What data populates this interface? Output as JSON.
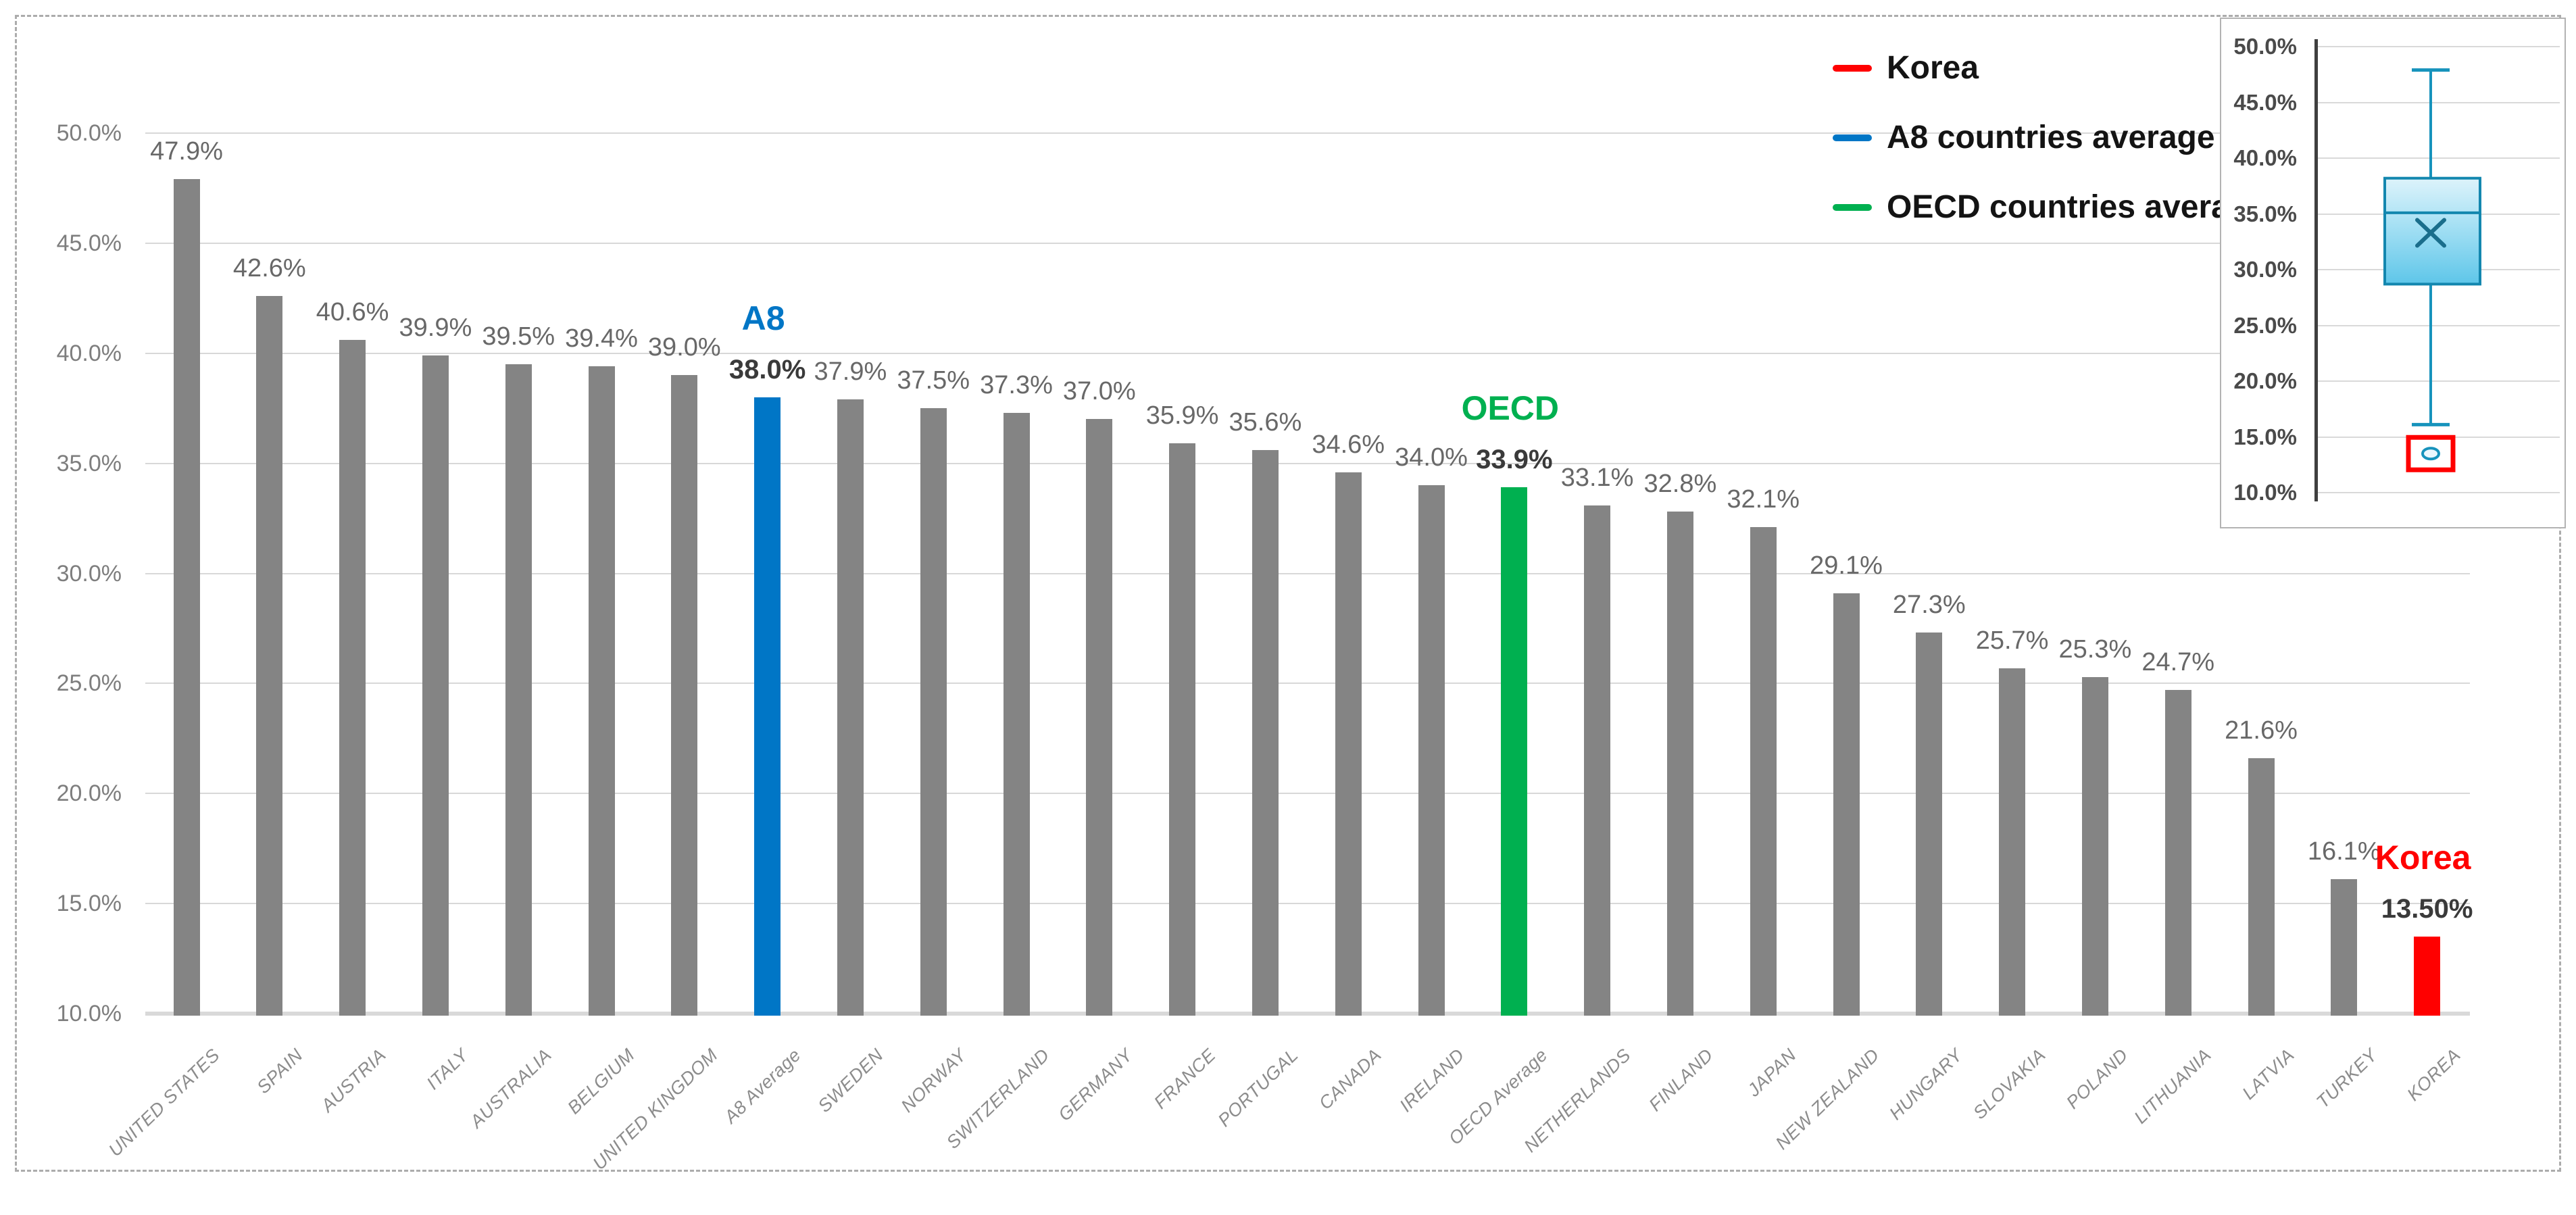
{
  "legend": {
    "items": [
      {
        "label": "Korea",
        "color": "#FF0000"
      },
      {
        "label": "A8 countries average",
        "color": "#0076C6"
      },
      {
        "label": "OECD countries average",
        "color": "#00B050"
      }
    ]
  },
  "chart_data": [
    {
      "type": "bar",
      "title": "",
      "xlabel": "",
      "ylabel": "",
      "ylim": [
        10,
        50
      ],
      "grid": true,
      "ytick_values": [
        50,
        45,
        40,
        35,
        30,
        25,
        20,
        15,
        10
      ],
      "ytick_labels": [
        "50.0%",
        "45.0%",
        "40.0%",
        "35.0%",
        "30.0%",
        "25.0%",
        "20.0%",
        "15.0%",
        "10.0%"
      ],
      "categories": [
        "UNITED STATES",
        "SPAIN",
        "AUSTRIA",
        "ITALY",
        "AUSTRALIA",
        "BELGIUM",
        "UNITED KINGDOM",
        "A8 Average",
        "SWEDEN",
        "NORWAY",
        "SWITZERLAND",
        "GERMANY",
        "FRANCE",
        "PORTUGAL",
        "CANADA",
        "IRELAND",
        "OECD Average",
        "NETHERLANDS",
        "FINLAND",
        "JAPAN",
        "NEW ZEALAND",
        "HUNGARY",
        "SLOVAKIA",
        "POLAND",
        "LITHUANIA",
        "LATVIA",
        "TURKEY",
        "KOREA"
      ],
      "values": [
        47.9,
        42.6,
        40.6,
        39.9,
        39.5,
        39.4,
        39.0,
        38.0,
        37.9,
        37.5,
        37.3,
        37.0,
        35.9,
        35.6,
        34.6,
        34.0,
        33.9,
        33.1,
        32.8,
        32.1,
        29.1,
        27.3,
        25.7,
        25.3,
        24.7,
        21.6,
        16.1,
        13.5
      ],
      "value_labels": [
        "47.9%",
        "42.6%",
        "40.6%",
        "39.9%",
        "39.5%",
        "39.4%",
        "39.0%",
        "38.0%",
        "37.9%",
        "37.5%",
        "37.3%",
        "37.0%",
        "35.9%",
        "35.6%",
        "34.6%",
        "34.0%",
        "33.9%",
        "33.1%",
        "32.8%",
        "32.1%",
        "29.1%",
        "27.3%",
        "25.7%",
        "25.3%",
        "24.7%",
        "21.6%",
        "16.1%",
        "13.50%"
      ],
      "default_bar_color": "#848484",
      "highlights": [
        {
          "index": 7,
          "color": "#0076C6",
          "annotation": "A8"
        },
        {
          "index": 16,
          "color": "#00B050",
          "annotation": "OECD"
        },
        {
          "index": 27,
          "color": "#FF0000",
          "annotation": "Korea"
        }
      ]
    },
    {
      "type": "boxplot",
      "ylim": [
        10,
        50
      ],
      "ytick_values": [
        50,
        45,
        40,
        35,
        30,
        25,
        20,
        15,
        10
      ],
      "ytick_labels": [
        "50.0%",
        "45.0%",
        "40.0%",
        "35.0%",
        "30.0%",
        "25.0%",
        "20.0%",
        "15.0%",
        "10.0%"
      ],
      "max": 47.9,
      "q3": 38.2,
      "median": 35.1,
      "mean": 33.3,
      "q1": 28.7,
      "min": 16.1,
      "outlier": 13.5,
      "outlier_highlighted": true,
      "box_border_color": "#1387AF",
      "whisker_color": "#1793BC",
      "outlier_highlight_color": "#FF0000"
    }
  ]
}
